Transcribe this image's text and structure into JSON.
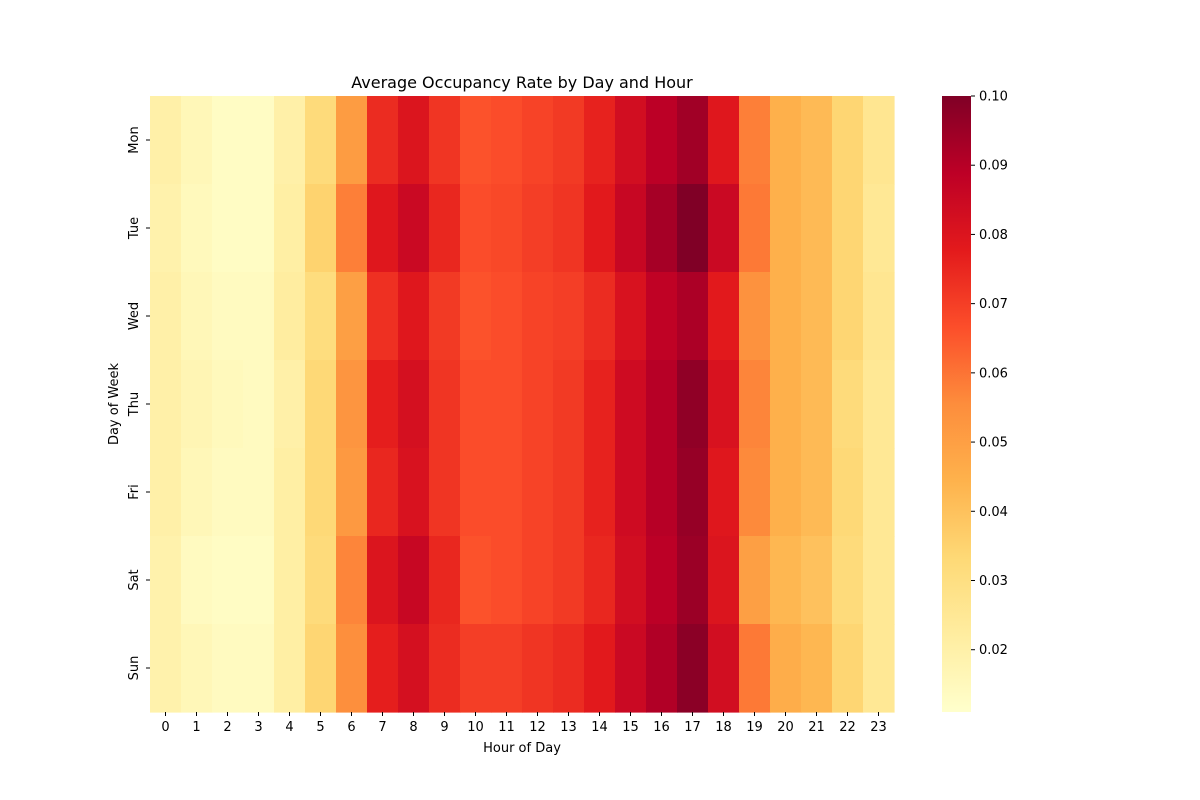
{
  "chart_data": {
    "type": "heatmap",
    "title": "Average Occupancy Rate by Day and Hour",
    "xlabel": "Hour of Day",
    "ylabel": "Day of Week",
    "x_categories": [
      "0",
      "1",
      "2",
      "3",
      "4",
      "5",
      "6",
      "7",
      "8",
      "9",
      "10",
      "11",
      "12",
      "13",
      "14",
      "15",
      "16",
      "17",
      "18",
      "19",
      "20",
      "21",
      "22",
      "23"
    ],
    "y_categories": [
      "Mon",
      "Tue",
      "Wed",
      "Thu",
      "Fri",
      "Sat",
      "Sun"
    ],
    "values": [
      [
        0.02,
        0.016,
        0.013,
        0.013,
        0.02,
        0.032,
        0.051,
        0.074,
        0.08,
        0.072,
        0.066,
        0.067,
        0.069,
        0.071,
        0.076,
        0.083,
        0.089,
        0.094,
        0.079,
        0.058,
        0.045,
        0.042,
        0.034,
        0.026
      ],
      [
        0.019,
        0.015,
        0.013,
        0.013,
        0.021,
        0.035,
        0.058,
        0.079,
        0.085,
        0.075,
        0.067,
        0.068,
        0.07,
        0.072,
        0.078,
        0.086,
        0.093,
        0.1,
        0.085,
        0.059,
        0.045,
        0.042,
        0.034,
        0.025
      ],
      [
        0.02,
        0.016,
        0.014,
        0.014,
        0.022,
        0.031,
        0.05,
        0.073,
        0.079,
        0.071,
        0.066,
        0.067,
        0.069,
        0.07,
        0.074,
        0.081,
        0.088,
        0.092,
        0.078,
        0.054,
        0.045,
        0.042,
        0.034,
        0.026
      ],
      [
        0.02,
        0.017,
        0.015,
        0.014,
        0.02,
        0.033,
        0.053,
        0.077,
        0.082,
        0.072,
        0.067,
        0.067,
        0.069,
        0.071,
        0.076,
        0.084,
        0.09,
        0.097,
        0.081,
        0.057,
        0.045,
        0.042,
        0.032,
        0.025
      ],
      [
        0.02,
        0.016,
        0.014,
        0.014,
        0.021,
        0.033,
        0.052,
        0.075,
        0.081,
        0.072,
        0.067,
        0.067,
        0.069,
        0.071,
        0.076,
        0.084,
        0.09,
        0.096,
        0.079,
        0.056,
        0.045,
        0.042,
        0.033,
        0.025
      ],
      [
        0.019,
        0.014,
        0.013,
        0.013,
        0.021,
        0.032,
        0.057,
        0.08,
        0.086,
        0.075,
        0.066,
        0.067,
        0.069,
        0.071,
        0.075,
        0.083,
        0.089,
        0.095,
        0.08,
        0.05,
        0.043,
        0.04,
        0.032,
        0.025
      ],
      [
        0.019,
        0.016,
        0.014,
        0.014,
        0.021,
        0.034,
        0.055,
        0.077,
        0.082,
        0.074,
        0.07,
        0.07,
        0.072,
        0.074,
        0.078,
        0.085,
        0.091,
        0.098,
        0.083,
        0.059,
        0.046,
        0.043,
        0.034,
        0.025
      ]
    ],
    "colorbar": {
      "colormap": "YlOrRd",
      "min": 0.011,
      "max": 0.1,
      "ticks": [
        0.02,
        0.03,
        0.04,
        0.05,
        0.06,
        0.07,
        0.08,
        0.09,
        0.1
      ],
      "tick_labels": [
        "0.02",
        "0.03",
        "0.04",
        "0.05",
        "0.06",
        "0.07",
        "0.08",
        "0.09",
        "0.10"
      ]
    },
    "grid": false
  }
}
